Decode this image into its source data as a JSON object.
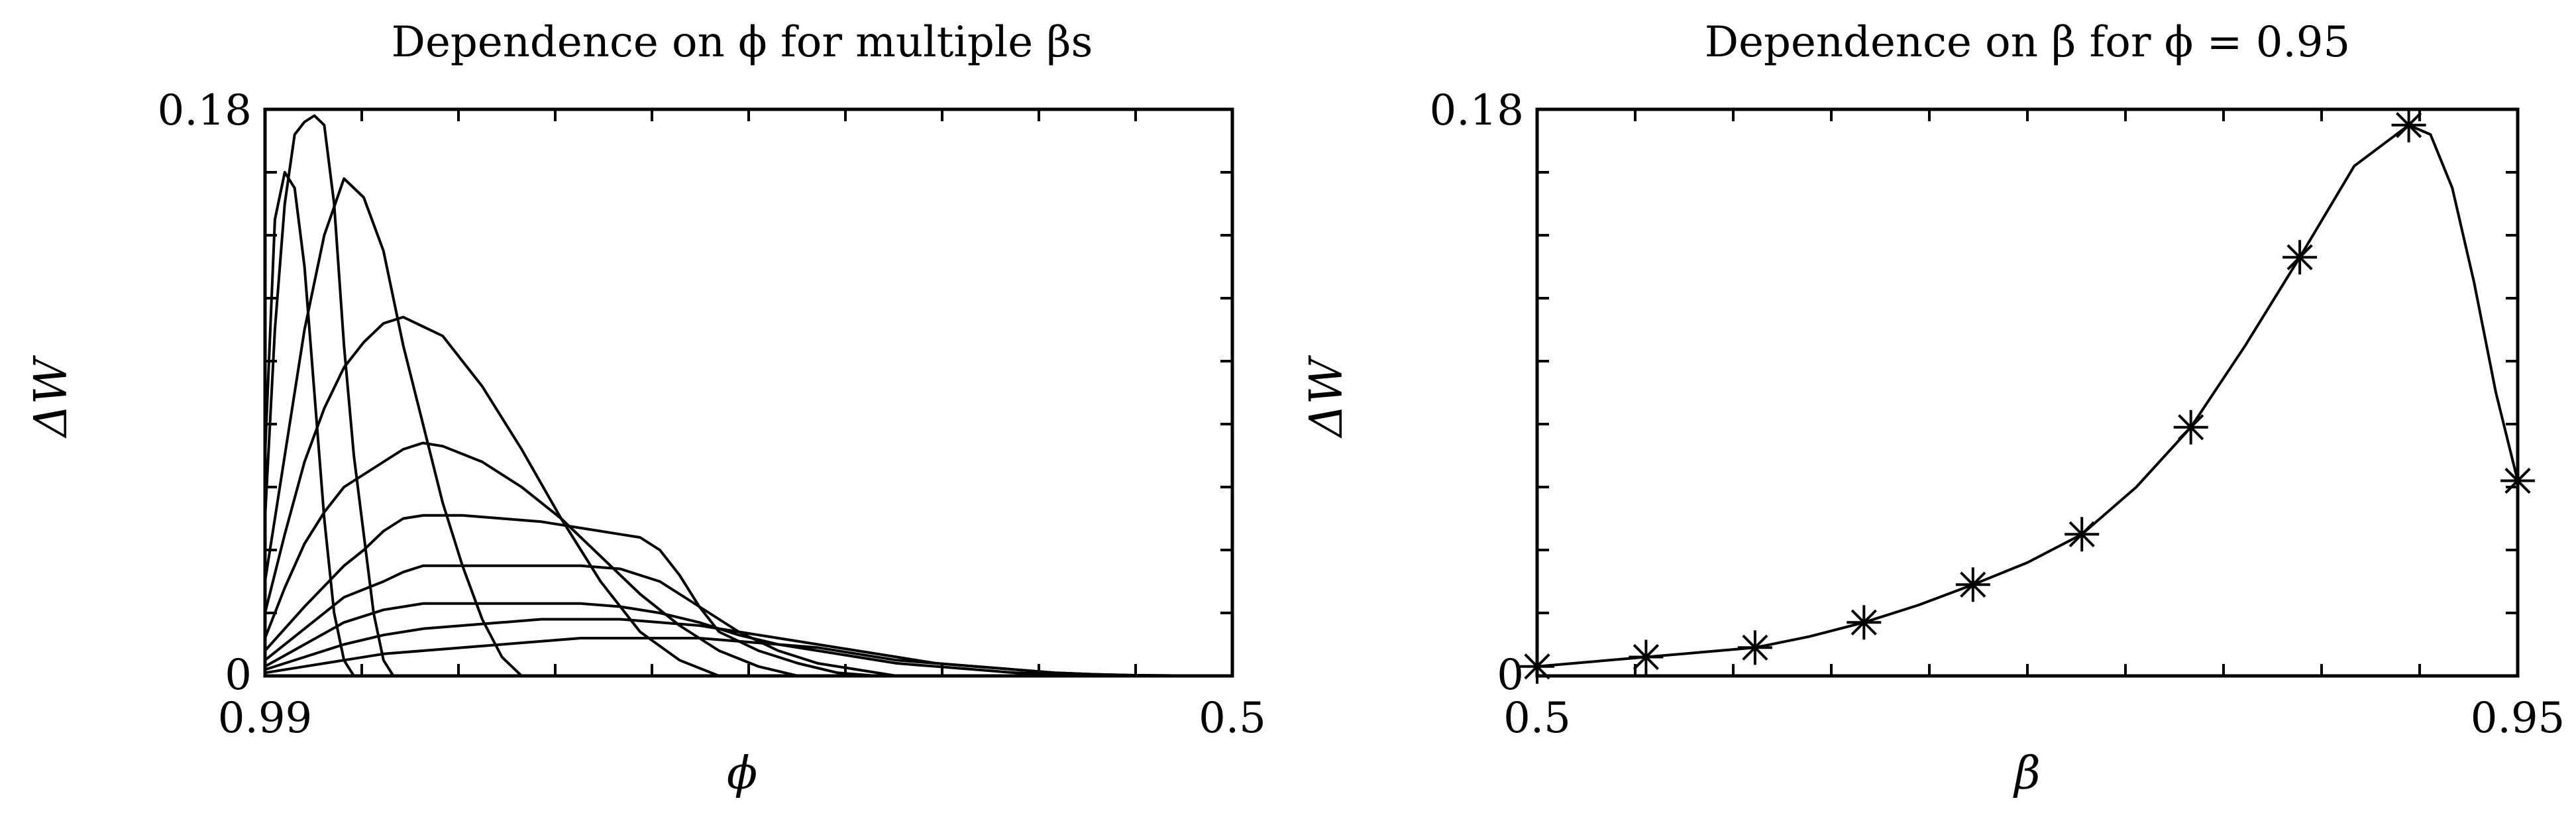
{
  "chart_data": [
    {
      "type": "line",
      "title": "Dependence on ϕ for multiple βs",
      "xlabel": "ϕ",
      "ylabel": "ΔW",
      "x_ticks": [
        "0.99",
        "0.5"
      ],
      "y_ticks": [
        "0.18",
        "0"
      ],
      "xlim": [
        0.99,
        0.5
      ],
      "ylim": [
        0,
        0.18
      ],
      "grid": false,
      "series": [
        {
          "x": [
            0.99,
            0.985,
            0.98,
            0.975,
            0.97,
            0.965,
            0.96,
            0.955,
            0.95,
            0.945
          ],
          "y": [
            0.07,
            0.145,
            0.16,
            0.155,
            0.13,
            0.09,
            0.05,
            0.02,
            0.005,
            0.0
          ]
        },
        {
          "x": [
            0.99,
            0.985,
            0.98,
            0.975,
            0.97,
            0.965,
            0.96,
            0.955,
            0.95,
            0.945,
            0.94,
            0.935,
            0.93,
            0.925
          ],
          "y": [
            0.05,
            0.11,
            0.15,
            0.172,
            0.176,
            0.178,
            0.175,
            0.15,
            0.105,
            0.07,
            0.045,
            0.02,
            0.005,
            0.0
          ]
        },
        {
          "x": [
            0.99,
            0.98,
            0.97,
            0.96,
            0.95,
            0.94,
            0.93,
            0.92,
            0.91,
            0.9,
            0.89,
            0.88,
            0.87,
            0.86
          ],
          "y": [
            0.03,
            0.07,
            0.11,
            0.14,
            0.158,
            0.152,
            0.135,
            0.105,
            0.08,
            0.055,
            0.035,
            0.018,
            0.006,
            0.0
          ]
        },
        {
          "x": [
            0.99,
            0.98,
            0.97,
            0.96,
            0.95,
            0.94,
            0.93,
            0.92,
            0.9,
            0.88,
            0.86,
            0.84,
            0.82,
            0.8,
            0.78,
            0.76
          ],
          "y": [
            0.02,
            0.045,
            0.068,
            0.085,
            0.098,
            0.106,
            0.112,
            0.114,
            0.108,
            0.092,
            0.072,
            0.05,
            0.03,
            0.014,
            0.005,
            0.0
          ]
        },
        {
          "x": [
            0.99,
            0.98,
            0.97,
            0.96,
            0.95,
            0.94,
            0.93,
            0.92,
            0.91,
            0.9,
            0.88,
            0.86,
            0.84,
            0.82,
            0.8,
            0.78,
            0.76,
            0.74,
            0.72
          ],
          "y": [
            0.012,
            0.028,
            0.042,
            0.052,
            0.06,
            0.064,
            0.068,
            0.072,
            0.074,
            0.073,
            0.068,
            0.06,
            0.05,
            0.038,
            0.026,
            0.016,
            0.008,
            0.003,
            0.0
          ]
        },
        {
          "x": [
            0.99,
            0.97,
            0.95,
            0.94,
            0.93,
            0.92,
            0.91,
            0.89,
            0.87,
            0.85,
            0.83,
            0.81,
            0.8,
            0.79,
            0.78,
            0.77,
            0.76,
            0.74,
            0.72,
            0.7,
            0.68
          ],
          "y": [
            0.008,
            0.022,
            0.035,
            0.04,
            0.046,
            0.05,
            0.051,
            0.051,
            0.05,
            0.049,
            0.047,
            0.045,
            0.044,
            0.04,
            0.032,
            0.022,
            0.014,
            0.008,
            0.004,
            0.001,
            0.0
          ]
        },
        {
          "x": [
            0.99,
            0.97,
            0.95,
            0.93,
            0.92,
            0.91,
            0.89,
            0.87,
            0.85,
            0.83,
            0.81,
            0.79,
            0.77,
            0.75,
            0.73,
            0.71,
            0.69,
            0.67
          ],
          "y": [
            0.005,
            0.015,
            0.025,
            0.03,
            0.033,
            0.035,
            0.035,
            0.035,
            0.035,
            0.035,
            0.034,
            0.03,
            0.022,
            0.014,
            0.008,
            0.004,
            0.002,
            0.0
          ]
        },
        {
          "x": [
            0.99,
            0.97,
            0.95,
            0.93,
            0.91,
            0.89,
            0.87,
            0.85,
            0.83,
            0.81,
            0.79,
            0.77,
            0.75,
            0.73,
            0.71,
            0.69,
            0.67,
            0.65,
            0.63,
            0.61,
            0.59,
            0.57,
            0.55,
            0.53,
            0.51,
            0.5
          ],
          "y": [
            0.003,
            0.01,
            0.017,
            0.021,
            0.023,
            0.023,
            0.023,
            0.023,
            0.023,
            0.022,
            0.02,
            0.017,
            0.013,
            0.01,
            0.008,
            0.006,
            0.004,
            0.003,
            0.002,
            0.001,
            0.0005,
            0.0002,
            0.0001,
            0.0,
            0.0,
            0.0
          ]
        },
        {
          "x": [
            0.99,
            0.97,
            0.95,
            0.93,
            0.91,
            0.89,
            0.87,
            0.85,
            0.83,
            0.81,
            0.79,
            0.77,
            0.75,
            0.73,
            0.71,
            0.69,
            0.67,
            0.65,
            0.63,
            0.61,
            0.59,
            0.57,
            0.55,
            0.53,
            0.51,
            0.5
          ],
          "y": [
            0.002,
            0.006,
            0.01,
            0.013,
            0.015,
            0.016,
            0.017,
            0.018,
            0.018,
            0.018,
            0.017,
            0.016,
            0.014,
            0.012,
            0.01,
            0.008,
            0.006,
            0.004,
            0.003,
            0.002,
            0.001,
            0.0005,
            0.0002,
            0.0001,
            0.0,
            0.0
          ]
        },
        {
          "x": [
            0.99,
            0.97,
            0.95,
            0.93,
            0.91,
            0.89,
            0.87,
            0.85,
            0.83,
            0.81,
            0.79,
            0.77,
            0.75,
            0.73,
            0.71,
            0.69,
            0.67,
            0.65,
            0.63,
            0.61,
            0.59,
            0.57,
            0.55,
            0.53,
            0.51,
            0.5
          ],
          "y": [
            0.001,
            0.003,
            0.005,
            0.007,
            0.008,
            0.009,
            0.01,
            0.011,
            0.012,
            0.012,
            0.012,
            0.012,
            0.011,
            0.01,
            0.009,
            0.007,
            0.005,
            0.004,
            0.003,
            0.002,
            0.001,
            0.0005,
            0.0002,
            0.0001,
            0.0,
            0.0
          ]
        }
      ]
    },
    {
      "type": "line",
      "title": "Dependence on β for ϕ = 0.95",
      "xlabel": "β",
      "ylabel": "ΔW",
      "x_ticks": [
        "0.5",
        "0.95"
      ],
      "y_ticks": [
        "0.18",
        "0"
      ],
      "xlim": [
        0.5,
        0.95
      ],
      "ylim": [
        0,
        0.18
      ],
      "grid": false,
      "marker": "asterisk",
      "points": {
        "x": [
          0.5,
          0.55,
          0.6,
          0.65,
          0.7,
          0.75,
          0.8,
          0.85,
          0.9,
          0.95
        ],
        "y": [
          0.003,
          0.006,
          0.009,
          0.017,
          0.029,
          0.045,
          0.079,
          0.133,
          0.175,
          0.062
        ]
      },
      "curve": {
        "x": [
          0.5,
          0.525,
          0.55,
          0.575,
          0.6,
          0.625,
          0.65,
          0.675,
          0.7,
          0.725,
          0.75,
          0.775,
          0.8,
          0.825,
          0.85,
          0.875,
          0.9,
          0.91,
          0.92,
          0.93,
          0.94,
          0.95
        ],
        "y": [
          0.003,
          0.0045,
          0.006,
          0.0075,
          0.009,
          0.0125,
          0.017,
          0.0225,
          0.029,
          0.036,
          0.045,
          0.06,
          0.079,
          0.105,
          0.133,
          0.162,
          0.175,
          0.172,
          0.155,
          0.125,
          0.09,
          0.062
        ]
      }
    }
  ]
}
